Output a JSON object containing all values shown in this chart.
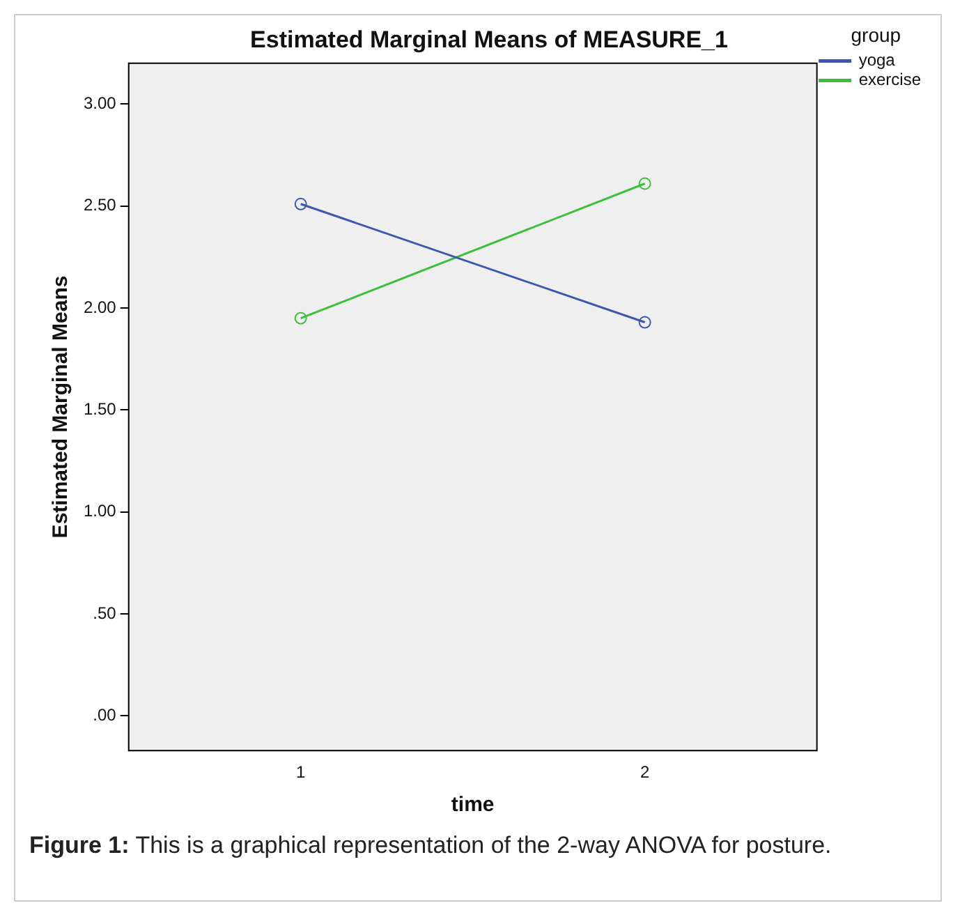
{
  "chart_data": {
    "type": "line",
    "title": "Estimated Marginal Means of MEASURE_1",
    "xlabel": "time",
    "ylabel": "Estimated Marginal Means",
    "legend_title": "group",
    "categories": [
      "1",
      "2"
    ],
    "series": [
      {
        "name": "yoga",
        "color": "#3e56b0",
        "values": [
          2.51,
          1.93
        ]
      },
      {
        "name": "exercise",
        "color": "#3cbf3c",
        "values": [
          1.95,
          2.61
        ]
      }
    ],
    "ylim": [
      -0.17,
      3.2
    ],
    "yticks": [
      {
        "value": 0,
        "label": ".00"
      },
      {
        "value": 0.5,
        "label": ".50"
      },
      {
        "value": 1,
        "label": "1.00"
      },
      {
        "value": 1.5,
        "label": "1.50"
      },
      {
        "value": 2,
        "label": "2.00"
      },
      {
        "value": 2.5,
        "label": "2.50"
      },
      {
        "value": 3,
        "label": "3.00"
      }
    ],
    "grid": false,
    "legend": "top right",
    "marker": "circle",
    "line_style": "solid",
    "annotations": [
      "Figure 1: This is a graphical representation of the 2-way ANOVA for posture."
    ]
  }
}
